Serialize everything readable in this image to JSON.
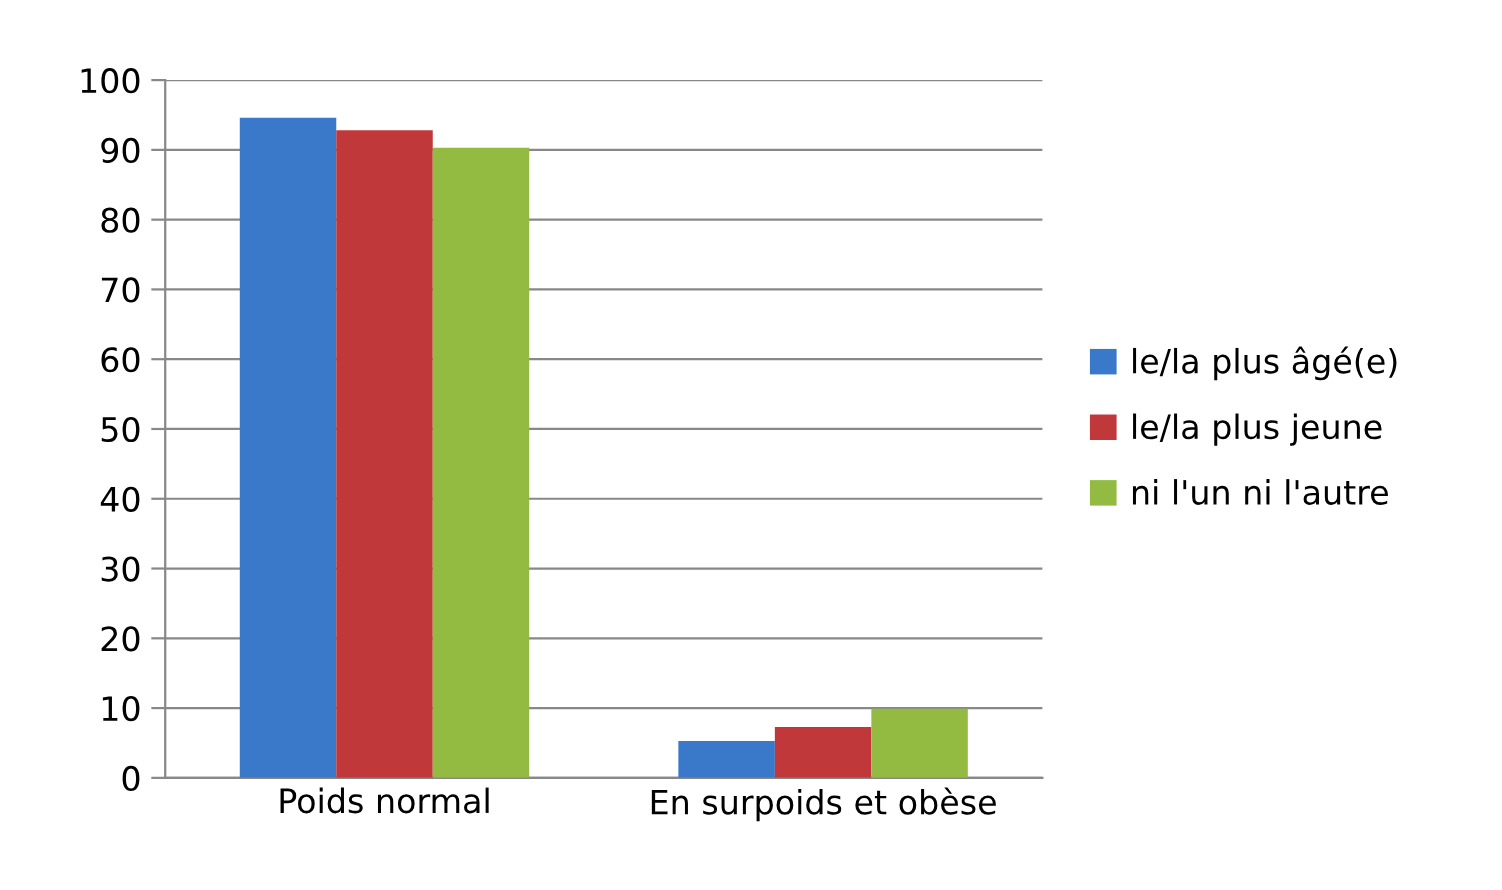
{
  "chart_data": {
    "type": "bar",
    "categories": [
      "Poids normal",
      "En surpoids et obèse"
    ],
    "series": [
      {
        "name": "le/la plus âgé(e)",
        "color": "#3a78c9",
        "values": [
          94.6,
          5.3
        ]
      },
      {
        "name": "le/la plus jeune",
        "color": "#c0383a",
        "values": [
          92.8,
          7.3
        ]
      },
      {
        "name": "ni l'un ni l'autre",
        "color": "#93bb41",
        "values": [
          90.3,
          9.9
        ]
      }
    ],
    "ylim": [
      0,
      100
    ],
    "yticks": [
      0,
      10,
      20,
      30,
      40,
      50,
      60,
      70,
      80,
      90,
      100
    ],
    "grid": "y",
    "legend": "right"
  }
}
